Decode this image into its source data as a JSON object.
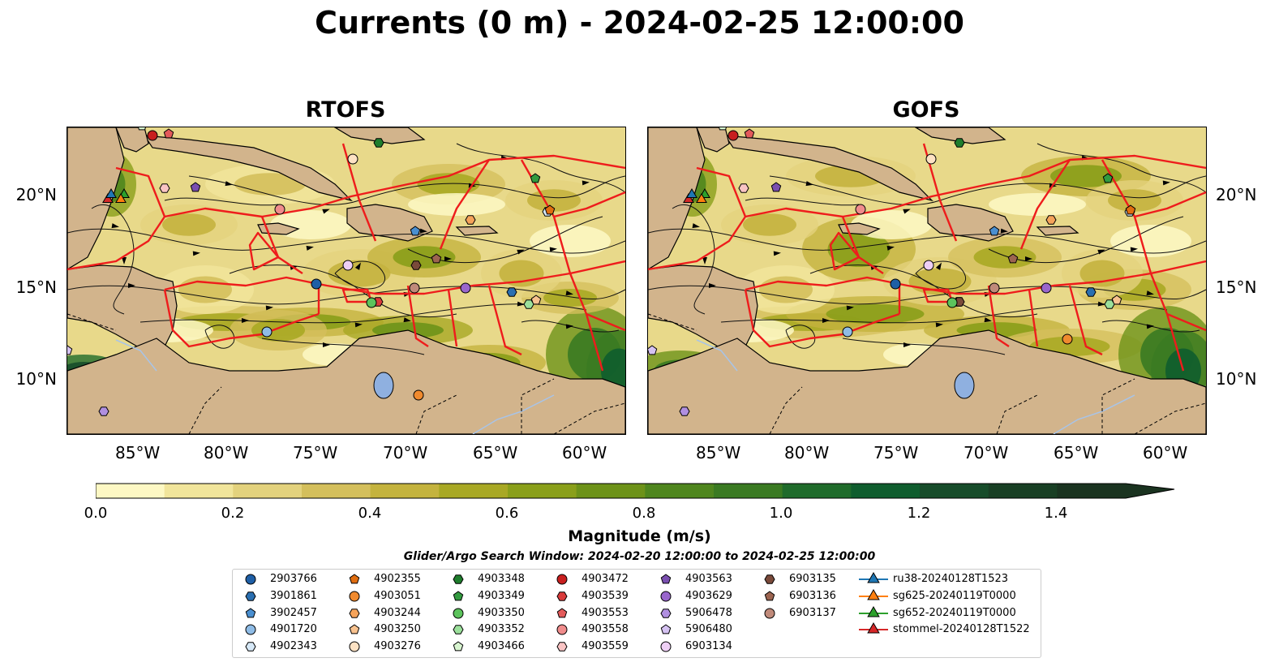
{
  "title": "Currents (0 m) - 2024-02-25 12:00:00",
  "panels": [
    {
      "title": "RTOFS"
    },
    {
      "title": "GOFS"
    }
  ],
  "x_ticks": [
    "85°W",
    "80°W",
    "75°W",
    "70°W",
    "65°W",
    "60°W"
  ],
  "y_ticks": [
    "20°N",
    "15°N",
    "10°N"
  ],
  "colorbar": {
    "label": "Magnitude (m/s)",
    "ticks": [
      "0.0",
      "0.2",
      "0.4",
      "0.6",
      "0.8",
      "1.0",
      "1.2",
      "1.4"
    ],
    "range": [
      0.0,
      1.5
    ],
    "colors": [
      "#fdf8c4",
      "#f1e59b",
      "#e3d27d",
      "#d4bf5c",
      "#c4b33e",
      "#a8a824",
      "#8a9f1a",
      "#6d9219",
      "#4f861e",
      "#3a7a22",
      "#1f6b2b",
      "#0f5d2e",
      "#174c2a",
      "#193f24",
      "#1a3320"
    ]
  },
  "search_window": "Glider/Argo Search Window: 2024-02-20 12:00:00 to 2024-02-25 12:00:00",
  "legend": [
    {
      "label": "2903766",
      "marker": "circle",
      "color": "#1f5fa6"
    },
    {
      "label": "3901861",
      "marker": "hexagon",
      "color": "#2a6fb0"
    },
    {
      "label": "3902457",
      "marker": "pentagon",
      "color": "#4a8fd0"
    },
    {
      "label": "4901720",
      "marker": "circle",
      "color": "#8fbce6"
    },
    {
      "label": "4902343",
      "marker": "hexagon",
      "color": "#d6e8f7"
    },
    {
      "label": "4902355",
      "marker": "pentagon",
      "color": "#e06d10"
    },
    {
      "label": "4903051",
      "marker": "circle",
      "color": "#f08a2e"
    },
    {
      "label": "4903244",
      "marker": "hexagon",
      "color": "#f5a35a"
    },
    {
      "label": "4903250",
      "marker": "pentagon",
      "color": "#f8c28f"
    },
    {
      "label": "4903276",
      "marker": "circle",
      "color": "#fde2c4"
    },
    {
      "label": "4903348",
      "marker": "hexagon",
      "color": "#1e7d2c"
    },
    {
      "label": "4903349",
      "marker": "pentagon",
      "color": "#329a3f"
    },
    {
      "label": "4903350",
      "marker": "circle",
      "color": "#5cc35c"
    },
    {
      "label": "4903352",
      "marker": "hexagon",
      "color": "#9be09b"
    },
    {
      "label": "4903466",
      "marker": "pentagon",
      "color": "#d8f5d0"
    },
    {
      "label": "4903472",
      "marker": "circle",
      "color": "#c81f1f"
    },
    {
      "label": "4903539",
      "marker": "hexagon",
      "color": "#d93b3b"
    },
    {
      "label": "4903553",
      "marker": "pentagon",
      "color": "#e35a5a"
    },
    {
      "label": "4903558",
      "marker": "circle",
      "color": "#f08c8c"
    },
    {
      "label": "4903559",
      "marker": "hexagon",
      "color": "#f9c4c4"
    },
    {
      "label": "4903563",
      "marker": "pentagon",
      "color": "#7a4fb0"
    },
    {
      "label": "4903629",
      "marker": "circle",
      "color": "#9966cc"
    },
    {
      "label": "5906478",
      "marker": "hexagon",
      "color": "#b08fe0"
    },
    {
      "label": "5906480",
      "marker": "pentagon",
      "color": "#d5c2f2"
    },
    {
      "label": "6903134",
      "marker": "circle",
      "color": "#eecff5"
    },
    {
      "label": "6903135",
      "marker": "hexagon",
      "color": "#7a4a3a"
    },
    {
      "label": "6903136",
      "marker": "pentagon",
      "color": "#9c6450"
    },
    {
      "label": "6903137",
      "marker": "circle",
      "color": "#c08a7a"
    },
    {
      "label": "ru38-20240128T1523",
      "marker": "triangle-line",
      "color": "#1f77b4"
    },
    {
      "label": "sg625-20240119T0000",
      "marker": "triangle-line",
      "color": "#ff7f0e"
    },
    {
      "label": "sg652-20240119T0000",
      "marker": "triangle-line",
      "color": "#2ca02c"
    },
    {
      "label": "stommel-20240128T1522",
      "marker": "triangle-line",
      "color": "#d62728"
    }
  ],
  "colors": {
    "land": "#d2b48c",
    "boundary": "#ee1c1c",
    "lake": "#8fb0e0",
    "river": "#a8c4e8"
  }
}
